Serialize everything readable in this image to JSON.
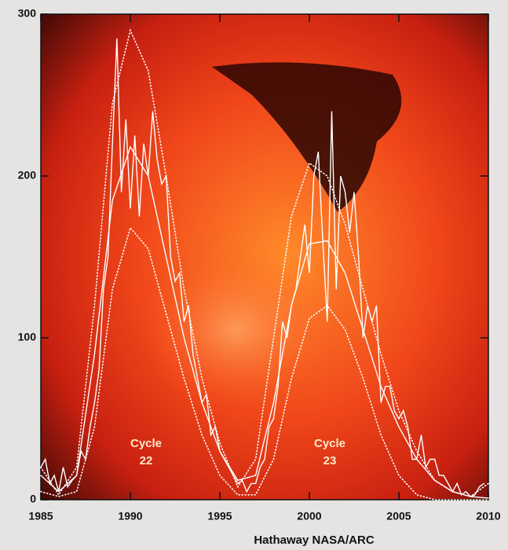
{
  "chart_data": {
    "type": "line",
    "credit": "Hathaway  NASA/ARC",
    "annotations": [
      {
        "lines": [
          "Cycle",
          "22"
        ]
      },
      {
        "lines": [
          "Cycle",
          "23"
        ]
      }
    ],
    "xlim": [
      1985,
      2010
    ],
    "xticks": [
      1985,
      1990,
      1995,
      2000,
      2005,
      2010
    ],
    "ylim": [
      0,
      300
    ],
    "yticks": [
      0,
      100,
      200,
      300
    ],
    "series": [
      {
        "color": "#ffffff",
        "line_style": "solid",
        "x": [
          1985,
          1985.25,
          1985.5,
          1985.75,
          1986,
          1986.25,
          1986.5,
          1986.75,
          1987,
          1987.25,
          1987.5,
          1987.75,
          1988,
          1988.25,
          1988.5,
          1988.75,
          1989,
          1989.25,
          1989.5,
          1989.75,
          1990,
          1990.25,
          1990.5,
          1990.75,
          1991,
          1991.25,
          1991.5,
          1991.75,
          1992,
          1992.25,
          1992.5,
          1992.75,
          1993,
          1993.25,
          1993.5,
          1993.75,
          1994,
          1994.25,
          1994.5,
          1994.75,
          1995,
          1995.25,
          1995.5,
          1995.75,
          1996,
          1996.25,
          1996.5,
          1996.75,
          1997,
          1997.25,
          1997.5,
          1997.75,
          1998,
          1998.25,
          1998.5,
          1998.75,
          1999,
          1999.25,
          1999.5,
          1999.75,
          2000,
          2000.25,
          2000.5,
          2000.75,
          2001,
          2001.25,
          2001.5,
          2001.75,
          2002,
          2002.25,
          2002.5,
          2002.75,
          2003,
          2003.25,
          2003.5,
          2003.75,
          2004,
          2004.25,
          2004.5,
          2004.75,
          2005,
          2005.25,
          2005.5,
          2005.75,
          2006,
          2006.25,
          2006.5,
          2006.75,
          2007,
          2007.25,
          2007.5,
          2007.75,
          2008,
          2008.25,
          2008.5,
          2008.75,
          2009,
          2009.25,
          2009.5,
          2009.75
        ],
        "values": [
          20,
          25,
          10,
          15,
          5,
          20,
          8,
          12,
          15,
          30,
          25,
          45,
          60,
          80,
          130,
          150,
          220,
          285,
          190,
          235,
          180,
          225,
          175,
          220,
          200,
          240,
          210,
          195,
          200,
          150,
          135,
          140,
          110,
          120,
          90,
          75,
          60,
          65,
          40,
          45,
          30,
          25,
          20,
          15,
          10,
          12,
          5,
          10,
          10,
          20,
          25,
          45,
          50,
          70,
          110,
          100,
          120,
          130,
          150,
          170,
          140,
          200,
          215,
          160,
          110,
          240,
          130,
          200,
          190,
          165,
          190,
          150,
          100,
          120,
          110,
          120,
          60,
          70,
          70,
          55,
          50,
          55,
          45,
          25,
          25,
          40,
          20,
          25,
          25,
          15,
          15,
          10,
          5,
          10,
          3,
          5,
          2,
          3,
          8,
          10
        ]
      },
      {
        "color": "#ffffff",
        "line_style": "solid",
        "x": [
          1985,
          1986,
          1987,
          1988,
          1989,
          1990,
          1991,
          1992,
          1993,
          1994,
          1995,
          1996,
          1997,
          1998,
          1999,
          2000,
          2001,
          2002,
          2003,
          2004,
          2005,
          2006,
          2007,
          2008,
          2009,
          2010
        ],
        "values": [
          15,
          5,
          15,
          90,
          185,
          218,
          200,
          150,
          100,
          60,
          30,
          12,
          15,
          60,
          120,
          158,
          160,
          140,
          105,
          70,
          45,
          25,
          12,
          5,
          2,
          1
        ]
      },
      {
        "color": "#ffffff",
        "line_style": "dotted",
        "x": [
          1985,
          1986,
          1987,
          1988,
          1989,
          1990,
          1991,
          1992,
          1993,
          1994,
          1995,
          1996,
          1997,
          1998,
          1999,
          2000,
          2001,
          2002,
          2003,
          2004,
          2005,
          2006,
          2007,
          2008,
          2009,
          2010
        ],
        "values": [
          20,
          3,
          20,
          120,
          245,
          290,
          265,
          200,
          130,
          75,
          35,
          8,
          25,
          100,
          175,
          208,
          200,
          170,
          130,
          90,
          55,
          30,
          12,
          5,
          2,
          10
        ]
      },
      {
        "color": "#ffffff",
        "line_style": "dotted",
        "x": [
          1985,
          1986,
          1987,
          1988,
          1989,
          1990,
          1991,
          1992,
          1993,
          1994,
          1995,
          1996,
          1997,
          1998,
          1999,
          2000,
          2001,
          2002,
          2003,
          2004,
          2005,
          2006,
          2007,
          2008,
          2009,
          2010
        ],
        "values": [
          5,
          2,
          5,
          45,
          130,
          168,
          155,
          115,
          75,
          40,
          15,
          3,
          3,
          25,
          75,
          112,
          120,
          105,
          75,
          40,
          15,
          3,
          0,
          0,
          0,
          0
        ]
      }
    ]
  }
}
